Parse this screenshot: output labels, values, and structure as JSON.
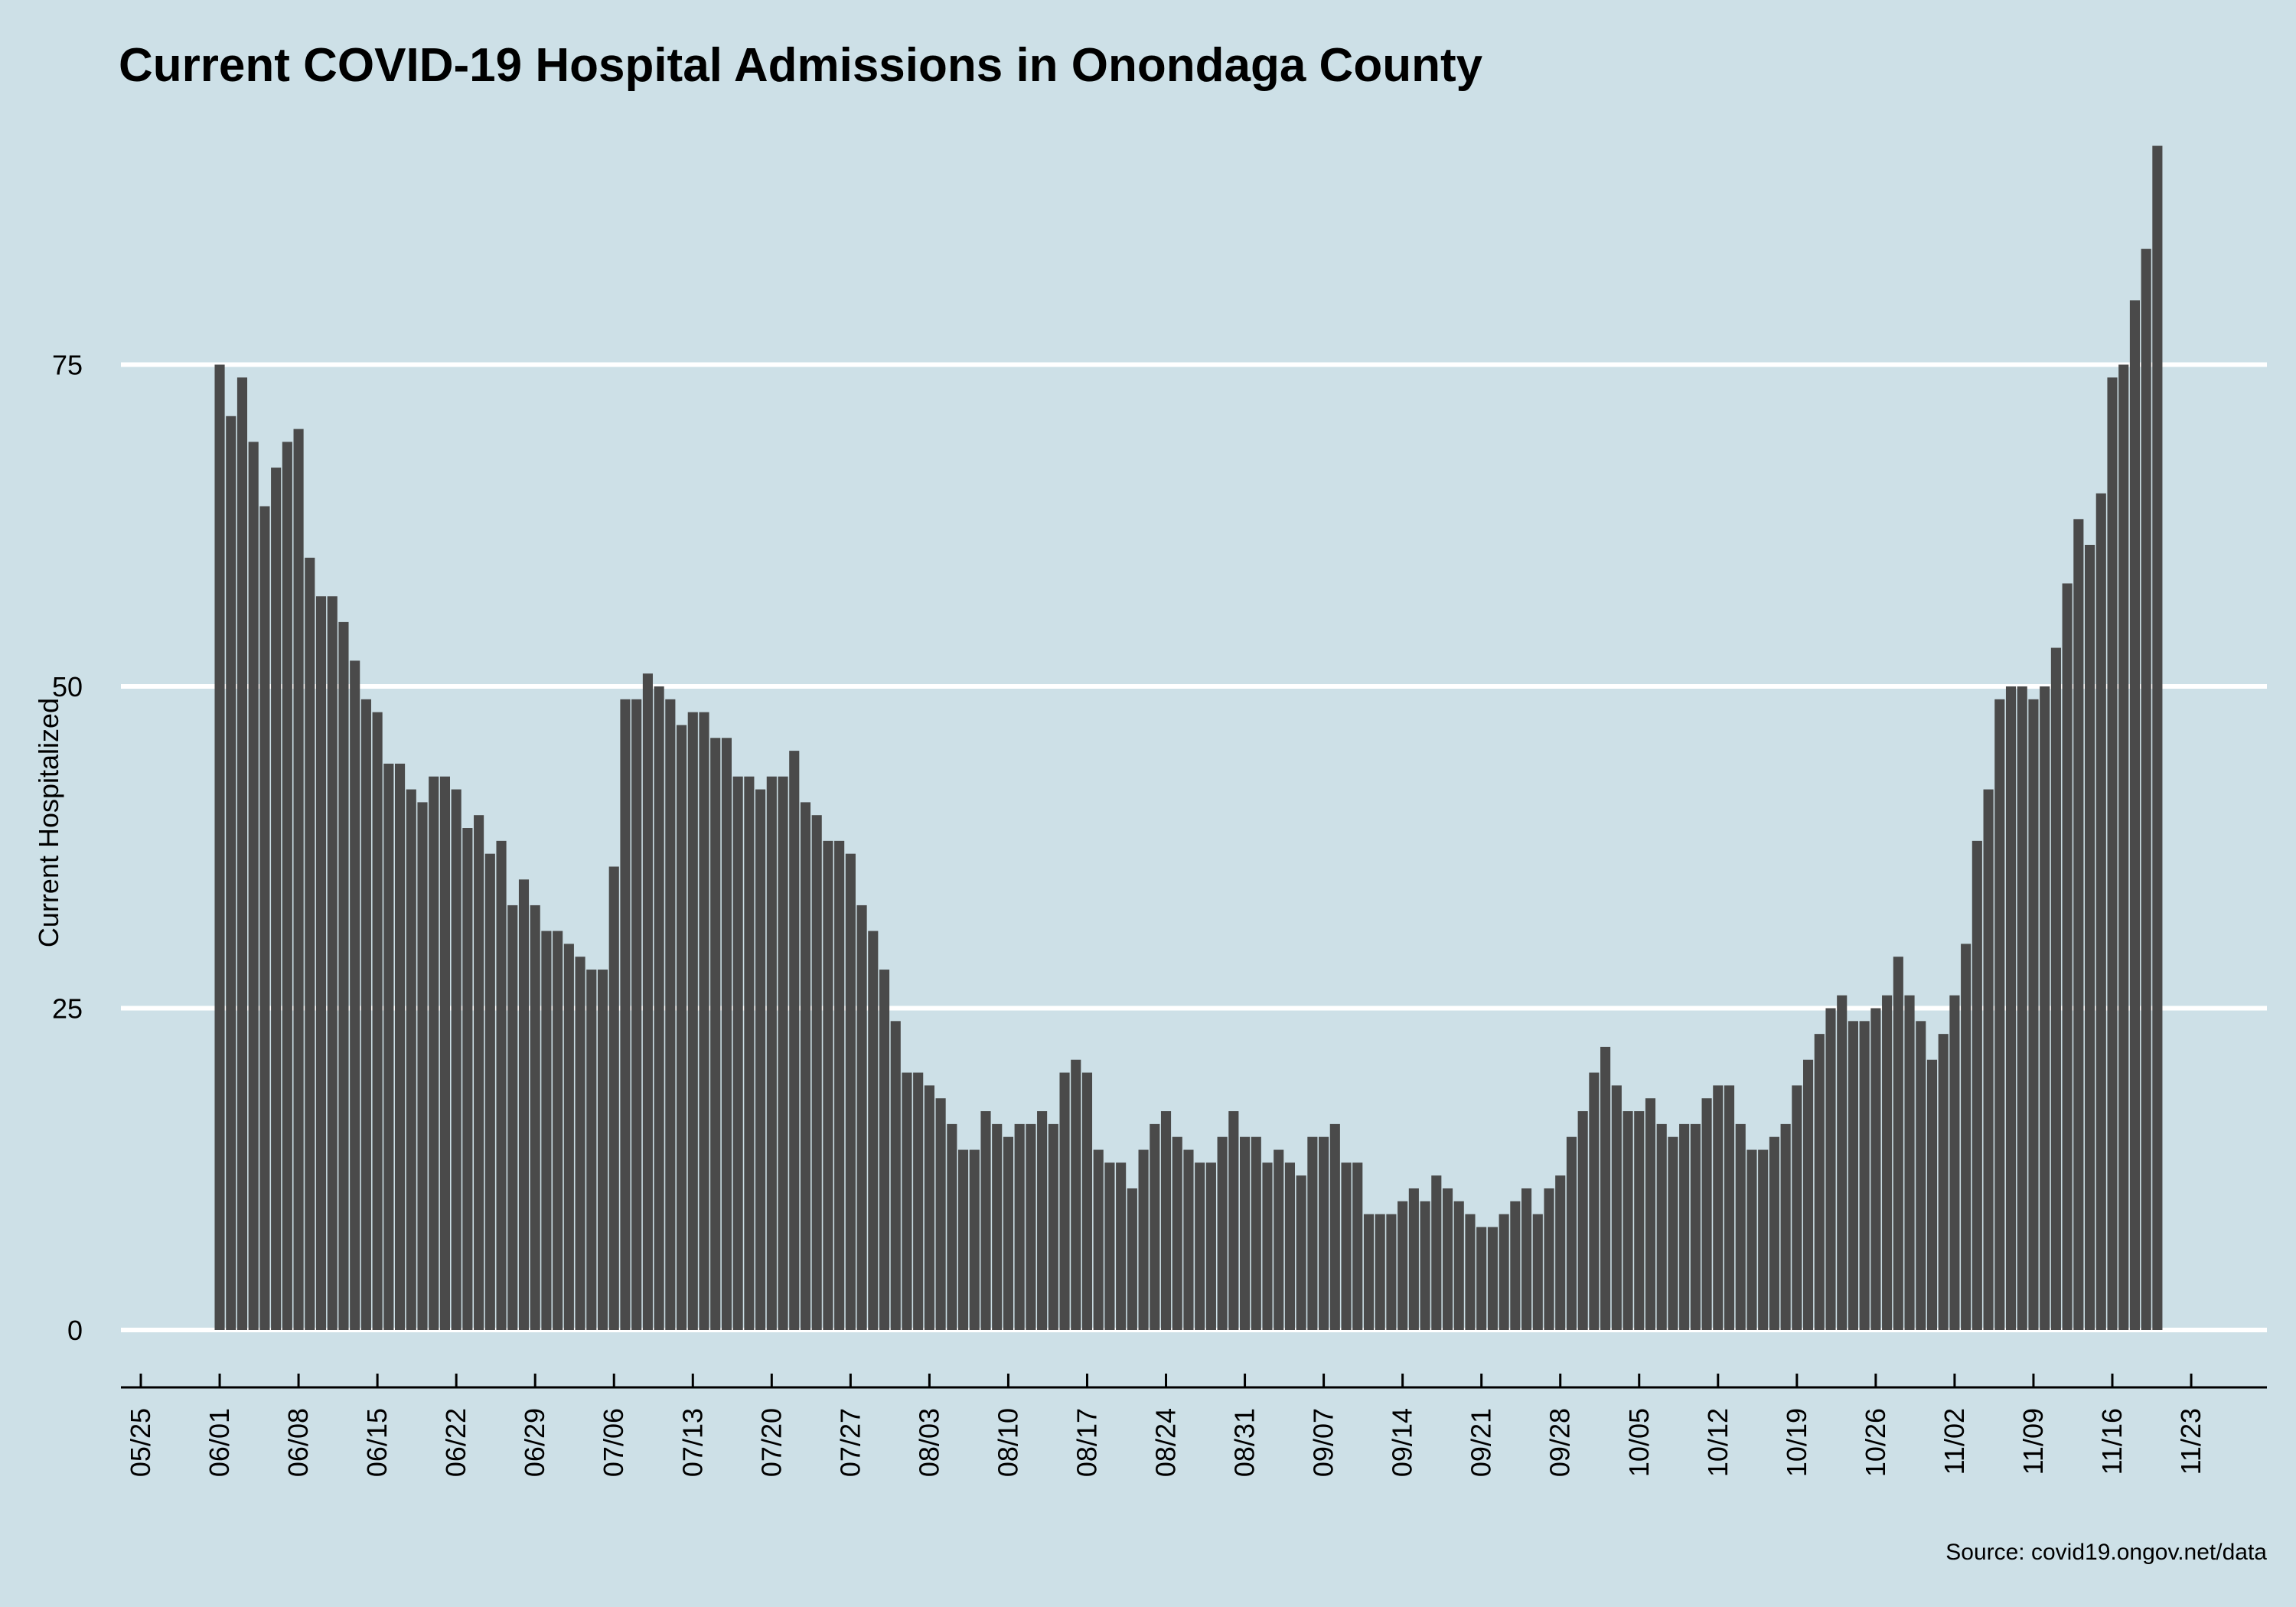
{
  "chart_data": {
    "type": "bar",
    "title": "Current COVID-19 Hospital Admissions in Onondaga County",
    "xlabel": "",
    "ylabel": "Current Hospitalized",
    "source": "Source: covid19.ongov.net/data",
    "x_start": "06/01",
    "ylim": [
      0,
      95
    ],
    "y_ticks": [
      0,
      25,
      50,
      75
    ],
    "x_ticks": [
      "05/25",
      "06/01",
      "06/08",
      "06/15",
      "06/22",
      "06/29",
      "07/06",
      "07/13",
      "07/20",
      "07/27",
      "08/03",
      "08/10",
      "08/17",
      "08/24",
      "08/31",
      "09/07",
      "09/14",
      "09/21",
      "09/28",
      "10/05",
      "10/12",
      "10/19",
      "10/26",
      "11/02",
      "11/09",
      "11/16",
      "11/23"
    ],
    "grid": "horizontal",
    "bar_color": "#4a4a4a",
    "background_color": "#cde0e7",
    "values": [
      75,
      71,
      74,
      69,
      64,
      67,
      69,
      70,
      60,
      57,
      57,
      55,
      52,
      49,
      48,
      44,
      44,
      42,
      41,
      43,
      43,
      42,
      39,
      40,
      37,
      38,
      33,
      35,
      33,
      31,
      31,
      30,
      29,
      28,
      28,
      36,
      49,
      49,
      51,
      50,
      49,
      47,
      48,
      48,
      46,
      46,
      43,
      43,
      42,
      43,
      43,
      45,
      41,
      40,
      38,
      38,
      37,
      33,
      31,
      28,
      24,
      20,
      20,
      19,
      18,
      16,
      14,
      14,
      17,
      16,
      15,
      16,
      16,
      17,
      16,
      20,
      21,
      20,
      14,
      13,
      13,
      11,
      14,
      16,
      17,
      15,
      14,
      13,
      13,
      15,
      17,
      15,
      15,
      13,
      14,
      13,
      12,
      15,
      15,
      16,
      13,
      13,
      9,
      9,
      9,
      10,
      11,
      10,
      12,
      11,
      10,
      9,
      8,
      8,
      9,
      10,
      11,
      9,
      11,
      12,
      15,
      17,
      20,
      22,
      19,
      17,
      17,
      18,
      16,
      15,
      16,
      16,
      18,
      19,
      19,
      16,
      14,
      14,
      15,
      16,
      19,
      21,
      23,
      25,
      26,
      24,
      24,
      25,
      26,
      29,
      26,
      24,
      21,
      23,
      26,
      30,
      38,
      42,
      49,
      50,
      50,
      49,
      50,
      53,
      58,
      63,
      61,
      65,
      74,
      75,
      80,
      84,
      92
    ]
  }
}
